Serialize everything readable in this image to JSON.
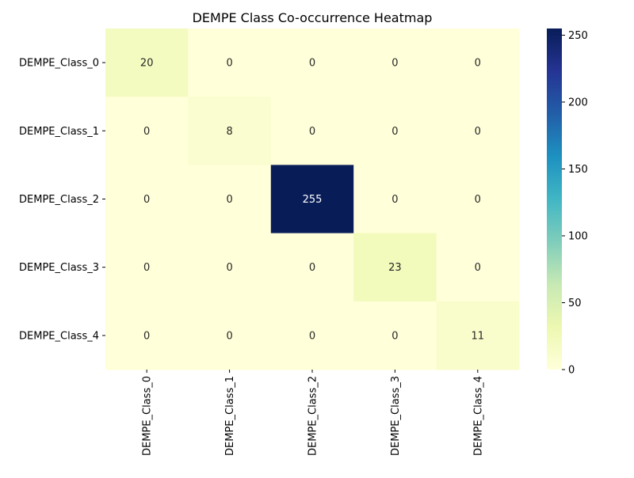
{
  "chart_data": {
    "type": "heatmap",
    "title": "DEMPE Class Co-occurrence Heatmap",
    "xlabel": "",
    "ylabel": "",
    "x_categories": [
      "DEMPE_Class_0",
      "DEMPE_Class_1",
      "DEMPE_Class_2",
      "DEMPE_Class_3",
      "DEMPE_Class_4"
    ],
    "y_categories": [
      "DEMPE_Class_0",
      "DEMPE_Class_1",
      "DEMPE_Class_2",
      "DEMPE_Class_3",
      "DEMPE_Class_4"
    ],
    "values": [
      [
        20,
        0,
        0,
        0,
        0
      ],
      [
        0,
        8,
        0,
        0,
        0
      ],
      [
        0,
        0,
        255,
        0,
        0
      ],
      [
        0,
        0,
        0,
        23,
        0
      ],
      [
        0,
        0,
        0,
        0,
        11
      ]
    ],
    "annotate": true,
    "colormap": "YlGnBu",
    "colorbar": {
      "min": 0,
      "max": 255,
      "ticks": [
        0,
        50,
        100,
        150,
        200,
        250
      ]
    },
    "grid": false,
    "legend": "colorbar-right"
  },
  "colors": {
    "colormap_stops": [
      "#ffffd9",
      "#edf8b1",
      "#c7e9b4",
      "#7fcdbb",
      "#41b6c4",
      "#1d91c0",
      "#225ea8",
      "#253494",
      "#081d58"
    ],
    "axis": "#000000",
    "annotation_dark": "#262626",
    "annotation_light": "#ffffff"
  }
}
